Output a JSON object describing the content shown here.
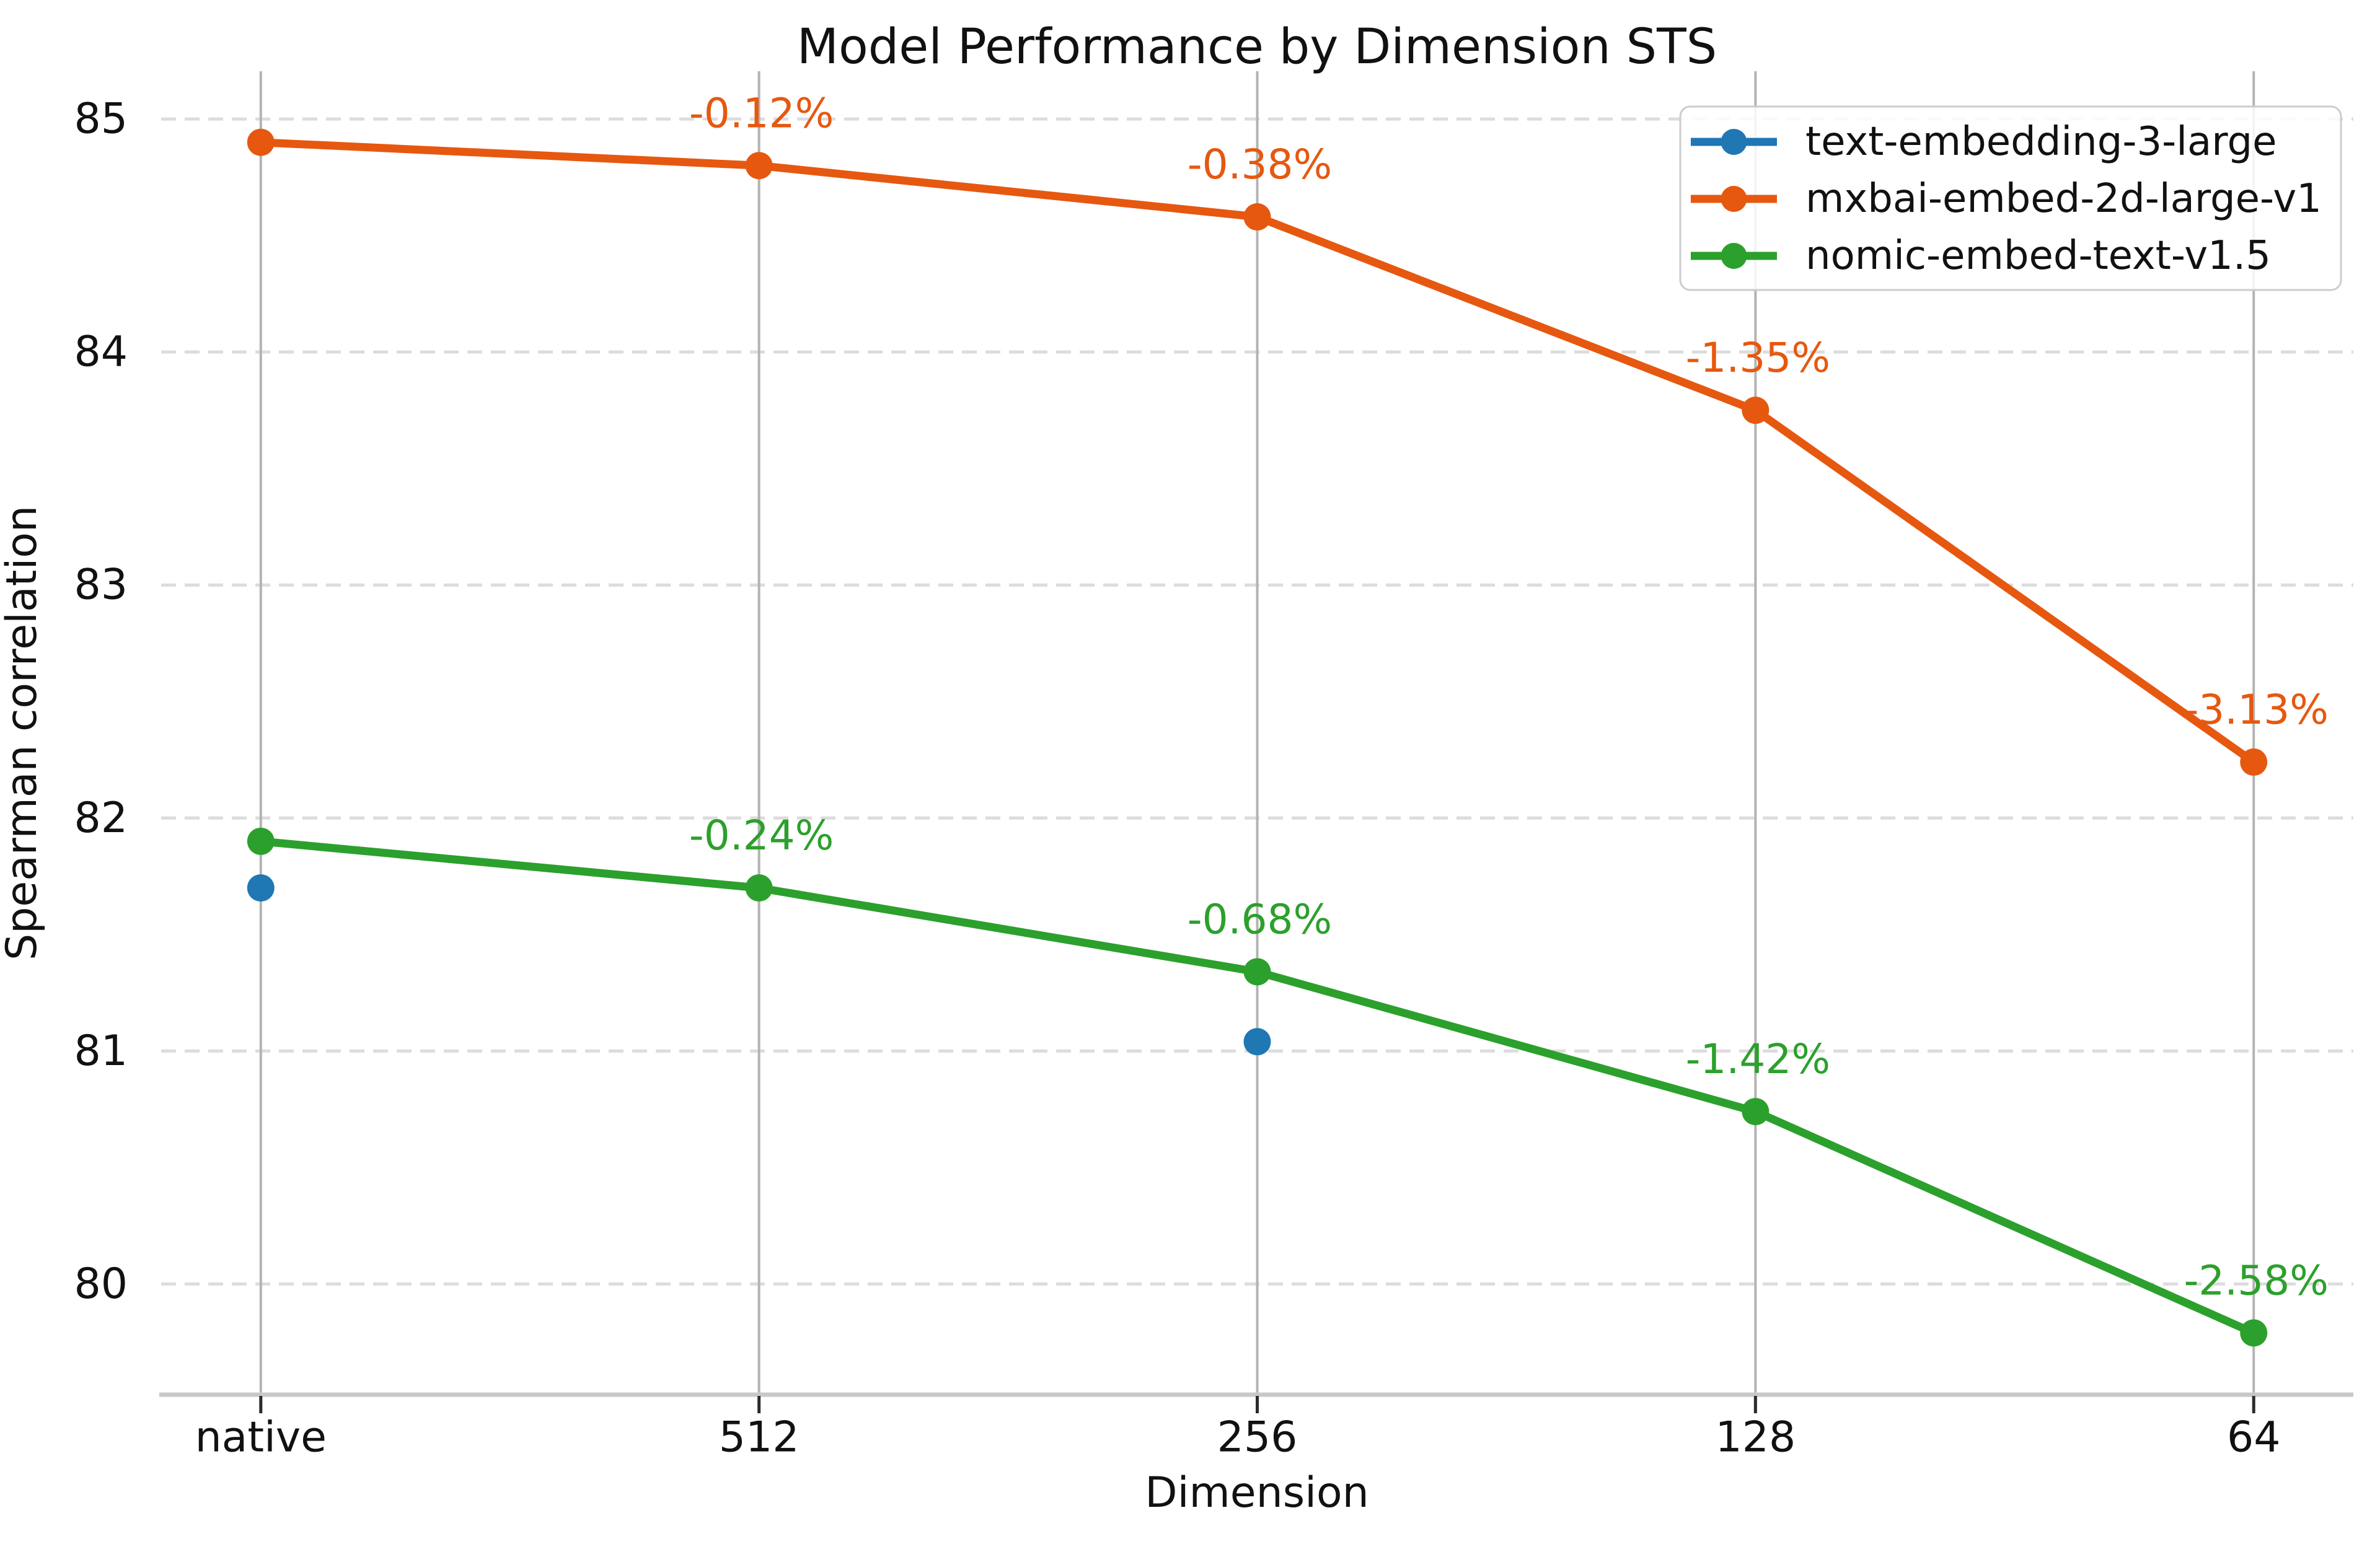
{
  "chart_data": {
    "type": "line",
    "title": "Model Performance by Dimension STS",
    "xlabel": "Dimension",
    "ylabel": "Spearman correlation",
    "categories": [
      "native",
      "512",
      "256",
      "128",
      "64"
    ],
    "yticks": [
      80,
      81,
      82,
      83,
      84,
      85
    ],
    "ylim": [
      79.525,
      85.205
    ],
    "x_margin_units": 0.2,
    "grid": {
      "vertical": "solid",
      "horizontal": "dashed"
    },
    "legend_position": "upper right",
    "series": [
      {
        "name": "text-embedding-3-large",
        "color": "#1f77b4",
        "values": [
          81.7,
          null,
          81.04,
          null,
          null
        ],
        "annotations": [
          null,
          null,
          null,
          null,
          null
        ]
      },
      {
        "name": "mxbai-embed-2d-large-v1",
        "color": "#e6580f",
        "values": [
          84.9,
          84.8,
          84.58,
          83.75,
          82.24
        ],
        "annotations": [
          null,
          "-0.12%",
          "-0.38%",
          "-1.35%",
          "-3.13%"
        ]
      },
      {
        "name": "nomic-embed-text-v1.5",
        "color": "#2ca02c",
        "values": [
          81.9,
          81.7,
          81.34,
          80.74,
          79.79
        ],
        "annotations": [
          null,
          "-0.24%",
          "-0.68%",
          "-1.42%",
          "-2.58%"
        ]
      }
    ],
    "style": {
      "vertical_grid_color": "#b3b3b3",
      "horizontal_grid_color": "#dcdcdc",
      "spine_color": "#c8c8c8",
      "tick_mark_color": "#2b2b2b",
      "text_color": "#111111",
      "legend_border_color": "#cccccc",
      "legend_fill": "rgba(255,255,255,0.85)"
    }
  }
}
